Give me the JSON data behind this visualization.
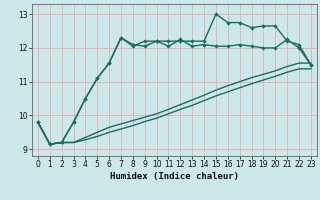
{
  "xlabel": "Humidex (Indice chaleur)",
  "bg_color": "#cce8e8",
  "grid_color": "#e8b4b4",
  "line_color": "#1a6e60",
  "xlim": [
    -0.5,
    23.5
  ],
  "ylim": [
    8.8,
    13.3
  ],
  "xticks": [
    0,
    1,
    2,
    3,
    4,
    5,
    6,
    7,
    8,
    9,
    10,
    11,
    12,
    13,
    14,
    15,
    16,
    17,
    18,
    19,
    20,
    21,
    22,
    23
  ],
  "yticks": [
    9,
    10,
    11,
    12,
    13
  ],
  "line1_x": [
    0,
    1,
    2,
    3,
    4,
    5,
    6,
    7,
    8,
    9,
    10,
    11,
    12,
    13,
    14,
    15,
    16,
    17,
    18,
    19,
    20,
    21,
    22,
    23
  ],
  "line1_y": [
    9.8,
    9.15,
    9.2,
    9.8,
    10.5,
    11.1,
    11.55,
    12.3,
    12.1,
    12.05,
    12.2,
    12.05,
    12.25,
    12.05,
    12.1,
    12.05,
    12.05,
    12.1,
    12.05,
    12.0,
    12.0,
    12.25,
    12.0,
    11.5
  ],
  "line2_x": [
    0,
    1,
    2,
    3,
    4,
    5,
    6,
    7,
    8,
    9,
    10,
    11,
    12,
    13,
    14,
    15,
    16,
    17,
    18,
    19,
    20,
    21,
    22,
    23
  ],
  "line2_y": [
    9.8,
    9.15,
    9.2,
    9.8,
    10.5,
    11.1,
    11.55,
    12.3,
    12.05,
    12.2,
    12.2,
    12.2,
    12.2,
    12.2,
    12.2,
    13.0,
    12.75,
    12.75,
    12.6,
    12.65,
    12.65,
    12.2,
    12.1,
    11.5
  ],
  "line3_x": [
    0,
    1,
    2,
    3,
    4,
    5,
    6,
    7,
    8,
    9,
    10,
    11,
    12,
    13,
    14,
    15,
    16,
    17,
    18,
    19,
    20,
    21,
    22,
    23
  ],
  "line3_y": [
    9.8,
    9.15,
    9.2,
    9.2,
    9.35,
    9.5,
    9.65,
    9.75,
    9.85,
    9.95,
    10.05,
    10.18,
    10.32,
    10.46,
    10.6,
    10.75,
    10.88,
    11.0,
    11.12,
    11.22,
    11.32,
    11.45,
    11.55,
    11.55
  ],
  "line4_x": [
    0,
    1,
    2,
    3,
    4,
    5,
    6,
    7,
    8,
    9,
    10,
    11,
    12,
    13,
    14,
    15,
    16,
    17,
    18,
    19,
    20,
    21,
    22,
    23
  ],
  "line4_y": [
    9.8,
    9.15,
    9.2,
    9.2,
    9.28,
    9.38,
    9.5,
    9.6,
    9.7,
    9.82,
    9.92,
    10.05,
    10.18,
    10.3,
    10.44,
    10.58,
    10.7,
    10.82,
    10.94,
    11.05,
    11.16,
    11.28,
    11.38,
    11.38
  ],
  "marker": "D",
  "marker_size": 2.2,
  "linewidth": 1.0
}
